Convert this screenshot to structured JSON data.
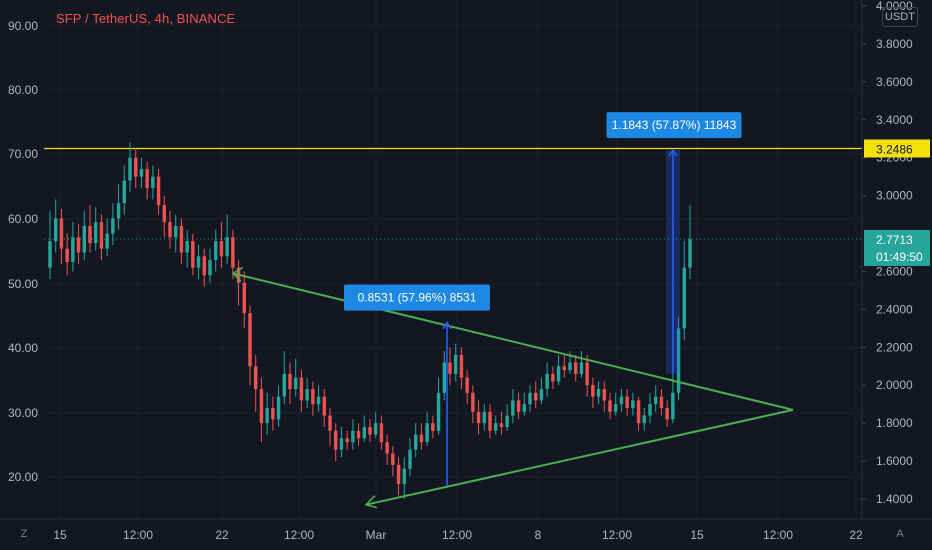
{
  "header": {
    "symbol_title": "SFP / TetherUS, 4h, BINANCE"
  },
  "currency_label": "USDT",
  "corner_left": "Z",
  "corner_right": "A",
  "colors": {
    "background": "#131722",
    "grid": "#1e2230",
    "up_candle": "#26a69a",
    "down_candle": "#ef5350",
    "triangle": "#4caf50",
    "resistance": "#f5e10a",
    "measure": "#2962ff",
    "measure_label": "#1e88e5",
    "price_badge": "#26a69a",
    "axis_text": "#b2b5be"
  },
  "chart_data": {
    "type": "candlestick",
    "left_axis_ticks": [
      "90.00",
      "80.00",
      "70.00",
      "60.00",
      "50.00",
      "40.00",
      "30.00",
      "20.00"
    ],
    "right_axis_ticks": [
      "4.0000",
      "3.8000",
      "3.6000",
      "3.4000",
      "3.2000",
      "3.0000",
      "2.6000",
      "2.4000",
      "2.2000",
      "2.0000",
      "1.8000",
      "1.6000",
      "1.4000"
    ],
    "x_ticks": [
      "15",
      "12:00",
      "22",
      "12:00",
      "Mar",
      "12:00",
      "8",
      "12:00",
      "15",
      "12:00",
      "22"
    ],
    "price_range": [
      1.3,
      4.05
    ],
    "resistance_level": {
      "value": 3.2486,
      "label": "3.2486"
    },
    "current_price": {
      "value": 2.7713,
      "label": "2.7713",
      "countdown": "01:49:50"
    },
    "measurements": [
      {
        "label": "0.8531 (57.96%) 8531",
        "from": 1.47,
        "to": 2.33
      },
      {
        "label": "1.1843 (57.87%) 11843",
        "from": 2.06,
        "to": 3.24
      }
    ],
    "triangle": {
      "upper_start": 2.59,
      "lower_start": 1.37,
      "apex": 1.87
    },
    "candles": [
      [
        2.62,
        2.76,
        2.92,
        2.56
      ],
      [
        2.76,
        2.88,
        2.98,
        2.7
      ],
      [
        2.88,
        2.72,
        2.93,
        2.64
      ],
      [
        2.72,
        2.65,
        2.8,
        2.58
      ],
      [
        2.65,
        2.78,
        2.86,
        2.6
      ],
      [
        2.78,
        2.7,
        2.85,
        2.64
      ],
      [
        2.7,
        2.84,
        2.92,
        2.66
      ],
      [
        2.84,
        2.75,
        2.95,
        2.7
      ],
      [
        2.75,
        2.86,
        2.94,
        2.71
      ],
      [
        2.86,
        2.72,
        2.9,
        2.66
      ],
      [
        2.72,
        2.8,
        2.88,
        2.68
      ],
      [
        2.8,
        2.88,
        2.96,
        2.74
      ],
      [
        2.88,
        2.96,
        3.06,
        2.82
      ],
      [
        2.96,
        3.08,
        3.16,
        2.9
      ],
      [
        3.08,
        3.2,
        3.28,
        3.02
      ],
      [
        3.2,
        3.1,
        3.25,
        3.04
      ],
      [
        3.1,
        3.14,
        3.2,
        3.04
      ],
      [
        3.14,
        3.04,
        3.18,
        2.98
      ],
      [
        3.04,
        3.1,
        3.16,
        2.98
      ],
      [
        3.1,
        2.95,
        3.14,
        2.9
      ],
      [
        2.95,
        2.86,
        3.0,
        2.78
      ],
      [
        2.86,
        2.78,
        2.92,
        2.72
      ],
      [
        2.78,
        2.84,
        2.9,
        2.7
      ],
      [
        2.84,
        2.7,
        2.88,
        2.64
      ],
      [
        2.7,
        2.76,
        2.82,
        2.62
      ],
      [
        2.76,
        2.62,
        2.8,
        2.58
      ],
      [
        2.62,
        2.68,
        2.74,
        2.56
      ],
      [
        2.68,
        2.58,
        2.72,
        2.52
      ],
      [
        2.58,
        2.66,
        2.72,
        2.54
      ],
      [
        2.66,
        2.76,
        2.82,
        2.6
      ],
      [
        2.76,
        2.68,
        2.86,
        2.62
      ],
      [
        2.68,
        2.78,
        2.9,
        2.64
      ],
      [
        2.78,
        2.62,
        2.82,
        2.56
      ],
      [
        2.62,
        2.54,
        2.66,
        2.42
      ],
      [
        2.54,
        2.38,
        2.6,
        2.3
      ],
      [
        2.38,
        2.1,
        2.42,
        2.0
      ],
      [
        2.1,
        1.98,
        2.16,
        1.86
      ],
      [
        1.98,
        1.8,
        2.04,
        1.7
      ],
      [
        1.8,
        1.88,
        1.96,
        1.74
      ],
      [
        1.88,
        1.82,
        1.94,
        1.76
      ],
      [
        1.82,
        1.94,
        2.0,
        1.78
      ],
      [
        1.94,
        2.06,
        2.18,
        1.9
      ],
      [
        2.06,
        1.98,
        2.12,
        1.9
      ],
      [
        1.98,
        2.04,
        2.14,
        1.94
      ],
      [
        2.04,
        1.92,
        2.08,
        1.86
      ],
      [
        1.92,
        1.98,
        2.04,
        1.88
      ],
      [
        1.98,
        1.9,
        2.02,
        1.84
      ],
      [
        1.9,
        1.94,
        2.0,
        1.86
      ],
      [
        1.94,
        1.84,
        1.98,
        1.78
      ],
      [
        1.84,
        1.76,
        1.88,
        1.68
      ],
      [
        1.76,
        1.66,
        1.8,
        1.6
      ],
      [
        1.66,
        1.72,
        1.78,
        1.62
      ],
      [
        1.72,
        1.7,
        1.76,
        1.66
      ],
      [
        1.7,
        1.76,
        1.82,
        1.66
      ],
      [
        1.76,
        1.72,
        1.8,
        1.68
      ],
      [
        1.72,
        1.78,
        1.84,
        1.7
      ],
      [
        1.78,
        1.74,
        1.82,
        1.7
      ],
      [
        1.74,
        1.8,
        1.86,
        1.72
      ],
      [
        1.8,
        1.7,
        1.84,
        1.66
      ],
      [
        1.7,
        1.64,
        1.74,
        1.58
      ],
      [
        1.64,
        1.58,
        1.68,
        1.52
      ],
      [
        1.58,
        1.48,
        1.62,
        1.42
      ],
      [
        1.48,
        1.56,
        1.62,
        1.4
      ],
      [
        1.56,
        1.66,
        1.72,
        1.52
      ],
      [
        1.66,
        1.74,
        1.8,
        1.62
      ],
      [
        1.74,
        1.7,
        1.8,
        1.66
      ],
      [
        1.7,
        1.8,
        1.86,
        1.68
      ],
      [
        1.8,
        1.76,
        1.84,
        1.72
      ],
      [
        1.76,
        1.96,
        2.04,
        1.74
      ],
      [
        1.96,
        2.12,
        2.18,
        1.92
      ],
      [
        2.12,
        2.06,
        2.2,
        2.0
      ],
      [
        2.06,
        2.16,
        2.22,
        2.02
      ],
      [
        2.16,
        2.04,
        2.2,
        1.98
      ],
      [
        2.04,
        1.96,
        2.08,
        1.9
      ],
      [
        1.96,
        1.86,
        2.0,
        1.8
      ],
      [
        1.86,
        1.8,
        1.92,
        1.74
      ],
      [
        1.8,
        1.86,
        1.9,
        1.76
      ],
      [
        1.86,
        1.76,
        1.9,
        1.72
      ],
      [
        1.76,
        1.8,
        1.84,
        1.74
      ],
      [
        1.8,
        1.78,
        1.86,
        1.74
      ],
      [
        1.78,
        1.84,
        1.9,
        1.76
      ],
      [
        1.84,
        1.92,
        1.98,
        1.8
      ],
      [
        1.92,
        1.86,
        1.96,
        1.82
      ],
      [
        1.86,
        1.9,
        1.96,
        1.84
      ],
      [
        1.9,
        1.96,
        2.0,
        1.86
      ],
      [
        1.96,
        1.92,
        2.02,
        1.88
      ],
      [
        1.92,
        1.98,
        2.04,
        1.9
      ],
      [
        1.98,
        2.06,
        2.12,
        1.94
      ],
      [
        2.06,
        2.02,
        2.1,
        1.98
      ],
      [
        2.02,
        2.1,
        2.16,
        2.0
      ],
      [
        2.1,
        2.08,
        2.16,
        2.04
      ],
      [
        2.08,
        2.12,
        2.18,
        2.06
      ],
      [
        2.12,
        2.06,
        2.16,
        2.02
      ],
      [
        2.06,
        2.12,
        2.18,
        2.04
      ],
      [
        2.12,
        2.0,
        2.16,
        1.94
      ],
      [
        2.0,
        1.94,
        2.04,
        1.88
      ],
      [
        1.94,
        1.98,
        2.02,
        1.9
      ],
      [
        1.98,
        1.92,
        2.02,
        1.86
      ],
      [
        1.92,
        1.86,
        1.96,
        1.82
      ],
      [
        1.86,
        1.9,
        1.96,
        1.84
      ],
      [
        1.9,
        1.94,
        1.98,
        1.86
      ],
      [
        1.94,
        1.88,
        1.98,
        1.84
      ],
      [
        1.88,
        1.92,
        1.96,
        1.84
      ],
      [
        1.92,
        1.8,
        1.94,
        1.76
      ],
      [
        1.8,
        1.84,
        1.88,
        1.76
      ],
      [
        1.84,
        1.9,
        1.96,
        1.8
      ],
      [
        1.9,
        1.94,
        2.0,
        1.86
      ],
      [
        1.94,
        1.88,
        1.98,
        1.84
      ],
      [
        1.88,
        1.82,
        1.92,
        1.78
      ],
      [
        1.82,
        1.96,
        2.08,
        1.8
      ],
      [
        1.96,
        2.3,
        2.36,
        1.92
      ],
      [
        2.3,
        2.62,
        2.76,
        2.24
      ],
      [
        2.62,
        2.77,
        2.95,
        2.56
      ]
    ]
  }
}
